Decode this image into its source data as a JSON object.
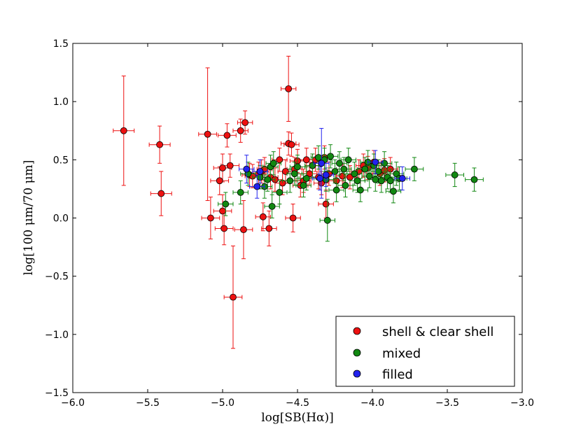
{
  "chart_data": {
    "type": "scatter",
    "title": "",
    "xlabel": "log[SB(Hα)]",
    "ylabel": "log[100 μm/70 μm]",
    "xlim": [
      -6.0,
      -3.0
    ],
    "ylim": [
      -1.5,
      1.5
    ],
    "x_ticks": [
      -6.0,
      -5.5,
      -5.0,
      -4.5,
      -4.0,
      -3.5,
      -3.0
    ],
    "x_tick_labels": [
      "−6.0",
      "−5.5",
      "−5.0",
      "−4.5",
      "−4.0",
      "−3.5",
      "−3.0"
    ],
    "y_ticks": [
      -1.5,
      -1.0,
      -0.5,
      0.0,
      0.5,
      1.0,
      1.5
    ],
    "y_tick_labels": [
      "−1.5",
      "−1.0",
      "−0.5",
      "0.0",
      "0.5",
      "1.0",
      "1.5"
    ],
    "grid": false,
    "legend_position": "bottom-right",
    "series": [
      {
        "name": "shell & clear shell",
        "color": "#ee1111",
        "points": [
          [
            -5.66,
            0.75,
            0.07,
            0.47
          ],
          [
            -5.42,
            0.63,
            0.07,
            0.16
          ],
          [
            -5.41,
            0.21,
            0.07,
            0.19
          ],
          [
            -5.1,
            0.72,
            0.06,
            0.57
          ],
          [
            -5.08,
            0.0,
            0.06,
            0.18
          ],
          [
            -5.02,
            0.32,
            0.06,
            0.12
          ],
          [
            -5.0,
            0.43,
            0.06,
            0.12
          ],
          [
            -5.0,
            0.06,
            0.06,
            0.14
          ],
          [
            -4.99,
            -0.09,
            0.06,
            0.14
          ],
          [
            -4.97,
            0.71,
            0.06,
            0.1
          ],
          [
            -4.95,
            0.45,
            0.06,
            0.1
          ],
          [
            -4.93,
            -0.68,
            0.06,
            0.44
          ],
          [
            -4.88,
            0.75,
            0.05,
            0.1
          ],
          [
            -4.86,
            -0.1,
            0.06,
            0.25
          ],
          [
            -4.85,
            0.82,
            0.05,
            0.1
          ],
          [
            -4.82,
            0.37,
            0.05,
            0.1
          ],
          [
            -4.8,
            0.36,
            0.05,
            0.1
          ],
          [
            -4.76,
            0.38,
            0.05,
            0.1
          ],
          [
            -4.74,
            0.4,
            0.05,
            0.1
          ],
          [
            -4.73,
            0.01,
            0.05,
            0.12
          ],
          [
            -4.72,
            0.42,
            0.05,
            0.1
          ],
          [
            -4.69,
            -0.09,
            0.05,
            0.15
          ],
          [
            -4.68,
            0.35,
            0.05,
            0.1
          ],
          [
            -4.65,
            0.33,
            0.05,
            0.1
          ],
          [
            -4.62,
            0.5,
            0.05,
            0.1
          ],
          [
            -4.6,
            0.3,
            0.05,
            0.1
          ],
          [
            -4.58,
            0.4,
            0.05,
            0.1
          ],
          [
            -4.56,
            1.11,
            0.05,
            0.28
          ],
          [
            -4.56,
            0.64,
            0.05,
            0.1
          ],
          [
            -4.54,
            0.63,
            0.05,
            0.1
          ],
          [
            -4.53,
            0.0,
            0.05,
            0.12
          ],
          [
            -4.52,
            0.42,
            0.05,
            0.1
          ],
          [
            -4.5,
            0.49,
            0.05,
            0.1
          ],
          [
            -4.48,
            0.28,
            0.05,
            0.1
          ],
          [
            -4.46,
            0.32,
            0.05,
            0.1
          ],
          [
            -4.44,
            0.5,
            0.05,
            0.1
          ],
          [
            -4.42,
            0.38,
            0.05,
            0.1
          ],
          [
            -4.4,
            0.45,
            0.05,
            0.1
          ],
          [
            -4.38,
            0.5,
            0.05,
            0.1
          ],
          [
            -4.36,
            0.35,
            0.05,
            0.1
          ],
          [
            -4.34,
            0.3,
            0.05,
            0.1
          ],
          [
            -4.32,
            0.52,
            0.05,
            0.1
          ],
          [
            -4.31,
            0.12,
            0.05,
            0.12
          ],
          [
            -4.29,
            0.38,
            0.05,
            0.1
          ],
          [
            -4.24,
            0.32,
            0.05,
            0.1
          ],
          [
            -4.2,
            0.36,
            0.05,
            0.1
          ],
          [
            -4.15,
            0.35,
            0.05,
            0.1
          ],
          [
            -4.09,
            0.4,
            0.05,
            0.1
          ],
          [
            -4.06,
            0.45,
            0.05,
            0.1
          ],
          [
            -4.03,
            0.43,
            0.05,
            0.1
          ],
          [
            -3.99,
            0.48,
            0.05,
            0.1
          ],
          [
            -3.95,
            0.38,
            0.05,
            0.1
          ],
          [
            -3.92,
            0.41,
            0.05,
            0.1
          ],
          [
            -3.88,
            0.42,
            0.05,
            0.1
          ]
        ]
      },
      {
        "name": "mixed",
        "color": "#118811",
        "points": [
          [
            -4.98,
            0.12,
            0.05,
            0.1
          ],
          [
            -4.88,
            0.22,
            0.05,
            0.1
          ],
          [
            -4.83,
            0.38,
            0.05,
            0.1
          ],
          [
            -4.75,
            0.35,
            0.05,
            0.1
          ],
          [
            -4.72,
            0.27,
            0.05,
            0.1
          ],
          [
            -4.7,
            0.33,
            0.05,
            0.1
          ],
          [
            -4.68,
            0.44,
            0.05,
            0.1
          ],
          [
            -4.67,
            0.1,
            0.05,
            0.1
          ],
          [
            -4.66,
            0.47,
            0.05,
            0.1
          ],
          [
            -4.62,
            0.22,
            0.05,
            0.1
          ],
          [
            -4.55,
            0.32,
            0.05,
            0.1
          ],
          [
            -4.52,
            0.38,
            0.05,
            0.1
          ],
          [
            -4.5,
            0.44,
            0.05,
            0.1
          ],
          [
            -4.46,
            0.28,
            0.05,
            0.1
          ],
          [
            -4.44,
            0.34,
            0.05,
            0.1
          ],
          [
            -4.4,
            0.45,
            0.05,
            0.1
          ],
          [
            -4.36,
            0.52,
            0.05,
            0.1
          ],
          [
            -4.32,
            0.5,
            0.05,
            0.1
          ],
          [
            -4.31,
            0.33,
            0.05,
            0.1
          ],
          [
            -4.3,
            -0.02,
            0.05,
            0.18
          ],
          [
            -4.28,
            0.53,
            0.05,
            0.1
          ],
          [
            -4.25,
            0.4,
            0.05,
            0.1
          ],
          [
            -4.24,
            0.24,
            0.05,
            0.1
          ],
          [
            -4.22,
            0.47,
            0.05,
            0.1
          ],
          [
            -4.19,
            0.42,
            0.05,
            0.1
          ],
          [
            -4.18,
            0.28,
            0.05,
            0.1
          ],
          [
            -4.16,
            0.5,
            0.05,
            0.1
          ],
          [
            -4.12,
            0.38,
            0.05,
            0.1
          ],
          [
            -4.1,
            0.32,
            0.05,
            0.1
          ],
          [
            -4.08,
            0.24,
            0.05,
            0.1
          ],
          [
            -4.05,
            0.42,
            0.05,
            0.1
          ],
          [
            -4.03,
            0.48,
            0.05,
            0.1
          ],
          [
            -4.02,
            0.36,
            0.05,
            0.1
          ],
          [
            -3.99,
            0.45,
            0.05,
            0.1
          ],
          [
            -3.98,
            0.33,
            0.05,
            0.1
          ],
          [
            -3.96,
            0.4,
            0.05,
            0.1
          ],
          [
            -3.94,
            0.32,
            0.05,
            0.1
          ],
          [
            -3.92,
            0.47,
            0.05,
            0.1
          ],
          [
            -3.9,
            0.35,
            0.05,
            0.1
          ],
          [
            -3.88,
            0.32,
            0.05,
            0.1
          ],
          [
            -3.86,
            0.23,
            0.05,
            0.1
          ],
          [
            -3.84,
            0.38,
            0.05,
            0.1
          ],
          [
            -3.82,
            0.34,
            0.05,
            0.1
          ],
          [
            -3.72,
            0.42,
            0.06,
            0.1
          ],
          [
            -3.45,
            0.37,
            0.06,
            0.1
          ],
          [
            -3.32,
            0.33,
            0.06,
            0.1
          ]
        ]
      },
      {
        "name": "filled",
        "color": "#2222ee",
        "points": [
          [
            -4.84,
            0.42,
            0.05,
            0.12
          ],
          [
            -4.77,
            0.27,
            0.05,
            0.1
          ],
          [
            -4.75,
            0.4,
            0.05,
            0.1
          ],
          [
            -4.35,
            0.34,
            0.05,
            0.1
          ],
          [
            -4.34,
            0.47,
            0.05,
            0.3
          ],
          [
            -4.31,
            0.37,
            0.05,
            0.1
          ],
          [
            -3.98,
            0.48,
            0.05,
            0.1
          ],
          [
            -3.8,
            0.34,
            0.05,
            0.1
          ]
        ]
      }
    ]
  }
}
